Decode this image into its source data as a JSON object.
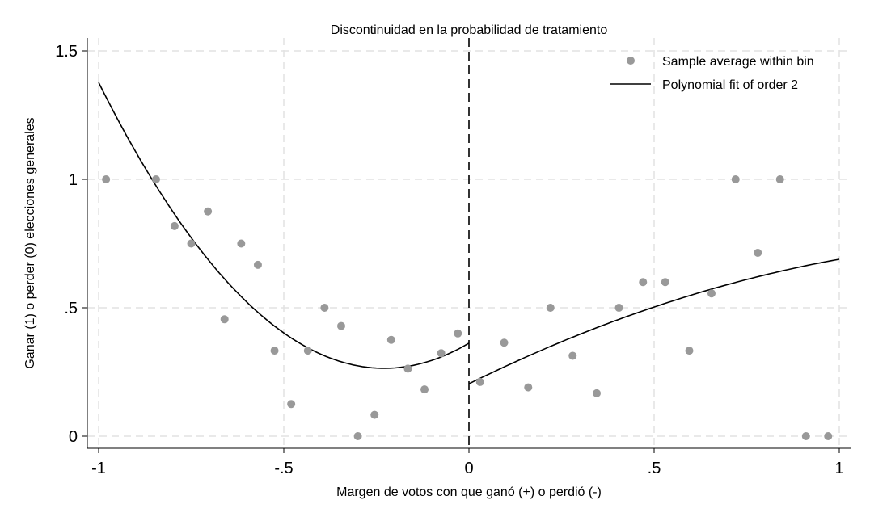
{
  "chart_data": {
    "type": "scatter",
    "title": "Discontinuidad en la probabilidad de tratamiento",
    "xlabel": "Margen de votos con que ganó (+) o perdió (-)",
    "ylabel": "Ganar (1) o perder (0) elecciones generales",
    "xlim": [
      -1,
      1
    ],
    "ylim": [
      -0.05,
      1.55
    ],
    "x_ticks": [
      -1,
      -0.5,
      0,
      0.5,
      1
    ],
    "x_tick_labels": [
      "-1",
      "-.5",
      "0",
      ".5",
      "1"
    ],
    "y_ticks": [
      0,
      0.5,
      1,
      1.5
    ],
    "y_tick_labels": [
      "0",
      ".5",
      "1",
      "1.5"
    ],
    "grid": true,
    "cutoff": 0,
    "legend_position": "top-right",
    "legend": [
      {
        "label": "Sample average within bin",
        "marker": "dot",
        "color": "#999999"
      },
      {
        "label": "Polynomial fit of order 2",
        "marker": "line",
        "color": "#000000"
      }
    ],
    "series": [
      {
        "name": "Sample average within bin",
        "kind": "scatter",
        "color": "#999999",
        "points": [
          [
            -0.98,
            1.0
          ],
          [
            -0.845,
            1.0
          ],
          [
            -0.795,
            0.818
          ],
          [
            -0.75,
            0.75
          ],
          [
            -0.705,
            0.875
          ],
          [
            -0.66,
            0.455
          ],
          [
            -0.615,
            0.75
          ],
          [
            -0.57,
            0.667
          ],
          [
            -0.525,
            0.333
          ],
          [
            -0.48,
            0.125
          ],
          [
            -0.435,
            0.333
          ],
          [
            -0.39,
            0.5
          ],
          [
            -0.345,
            0.429
          ],
          [
            -0.3,
            0.0
          ],
          [
            -0.255,
            0.083
          ],
          [
            -0.21,
            0.375
          ],
          [
            -0.165,
            0.263
          ],
          [
            -0.12,
            0.182
          ],
          [
            -0.075,
            0.323
          ],
          [
            -0.03,
            0.4
          ],
          [
            0.03,
            0.211
          ],
          [
            0.095,
            0.364
          ],
          [
            0.16,
            0.19
          ],
          [
            0.22,
            0.5
          ],
          [
            0.28,
            0.313
          ],
          [
            0.345,
            0.167
          ],
          [
            0.405,
            0.5
          ],
          [
            0.47,
            0.6
          ],
          [
            0.53,
            0.6
          ],
          [
            0.595,
            0.333
          ],
          [
            0.655,
            0.556
          ],
          [
            0.72,
            1.0
          ],
          [
            0.78,
            0.714
          ],
          [
            0.84,
            1.0
          ],
          [
            0.91,
            0.0
          ],
          [
            0.97,
            0.0
          ]
        ]
      },
      {
        "name": "Polynomial fit of order 2",
        "kind": "line",
        "color": "#000000",
        "segments": [
          {
            "domain": [
              -1,
              0
            ],
            "coef": [
              0.3622,
              0.8558,
              1.8707
            ]
          },
          {
            "domain": [
              0,
              1
            ],
            "coef": [
              0.2041,
              0.7105,
              -0.2258
            ]
          }
        ]
      }
    ]
  }
}
